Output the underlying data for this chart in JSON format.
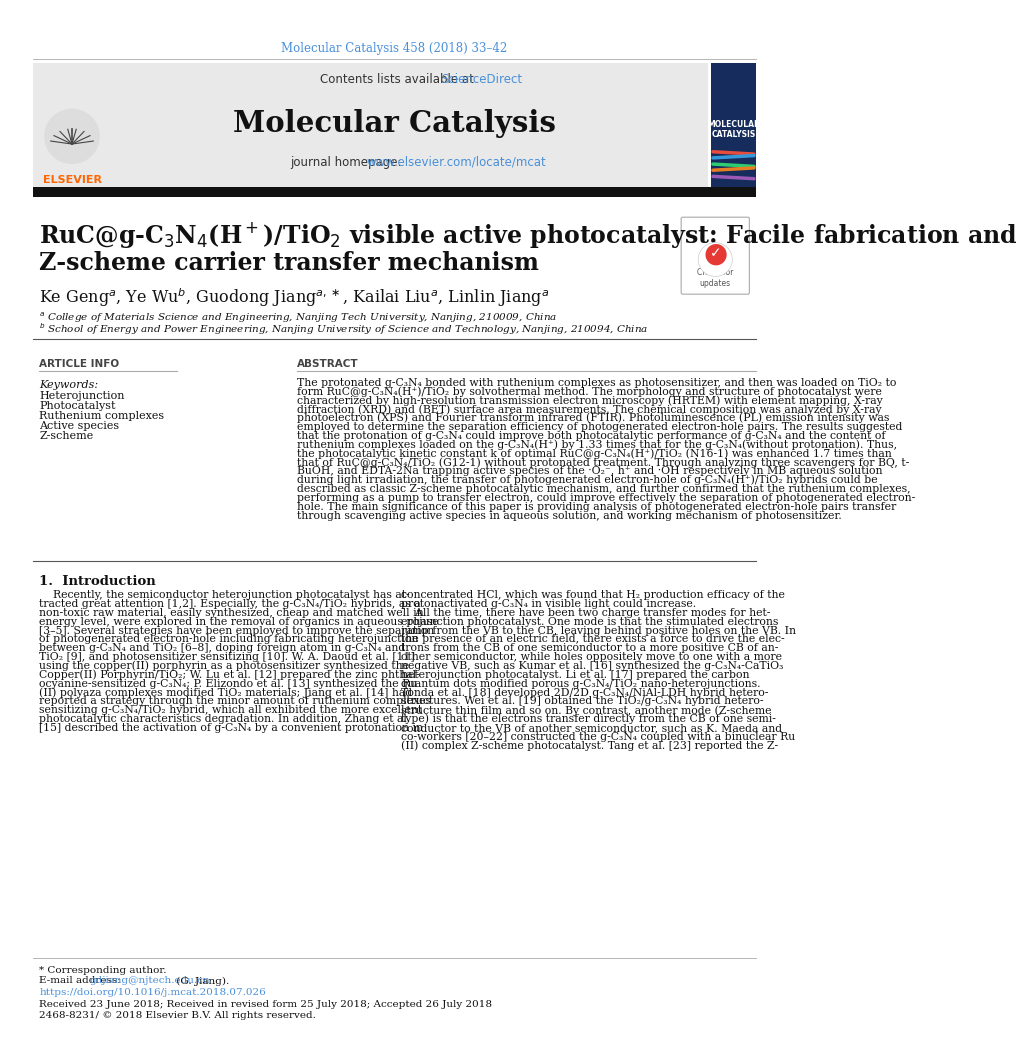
{
  "journal_ref": "Molecular Catalysis 458 (2018) 33–42",
  "contents_text": "Contents lists available at ",
  "sciencedirect_text": "ScienceDirect",
  "journal_name": "Molecular Catalysis",
  "homepage_label": "journal homepage:  ",
  "homepage_url": "www.elsevier.com/locate/mcat",
  "article_info_title": "ARTICLE INFO",
  "keywords_label": "Keywords:",
  "keywords": [
    "Heterojunction",
    "Photocatalyst",
    "Ruthenium complexes",
    "Active species",
    "Z-scheme"
  ],
  "abstract_title": "ABSTRACT",
  "abstract_lines": [
    "The protonated g-C₃N₄ bonded with ruthenium complexes as photosensitizer, and then was loaded on TiO₂ to",
    "form RuC@g-C₃N₄(H⁺)/TiO₂ by solvothermal method. The morphology and structure of photocatalyst were",
    "characterized by high-resolution transmission electron microscopy (HRTEM) with element mapping, X-ray",
    "diffraction (XRD) and (BET) surface area measurements. The chemical composition was analyzed by X-ray",
    "photoelectron (XPS) and Fourier transform infrared (FTIR). Photoluminescence (PL) emission intensity was",
    "employed to determine the separation efficiency of photogenerated electron-hole pairs. The results suggested",
    "that the protonation of g-C₃N₄ could improve both photocatalytic performance of g-C₃N₄ and the content of",
    "ruthenium complexes loaded on the g-C₃N₄(H⁺) by 1.33 times that for the g-C₃N₄(without protonation). Thus,",
    "the photocatalytic kinetic constant k of optimal RuC@g-C₃N₄(H⁺)/TiO₂ (N16-1) was enhanced 1.7 times than",
    "that of RuC@g-C₃N₄/TiO₂ (G12-1) without protonated treatment. Through analyzing three scavengers for BQ, t-",
    "BuOH, and EDTA-2Na trapping active species of the ·O₂⁻, h⁺ and ·OH respectively in MB aqueous solution",
    "during light irradiation, the transfer of photogenerated electron-hole of g-C₃N₄(H⁺)/TiO₂ hybrids could be",
    "described as classic Z-scheme photocatalytic mechanism, and further confirmed that the ruthenium complexes,",
    "performing as a pump to transfer electron, could improve effectively the separation of photogenerated electron-",
    "hole. The main significance of this paper is providing analysis of photogenerated electron-hole pairs transfer",
    "through scavenging active species in aqueous solution, and working mechanism of photosensitizer."
  ],
  "section1_title": "1.  Introduction",
  "intro1_lines": [
    "    Recently, the semiconductor heterojunction photocatalyst has at-",
    "tracted great attention [1,2]. Especially, the g-C₃N₄/TiO₂ hybrids, as a",
    "non-toxic raw material, easily synthesized, cheap and matched well in",
    "energy level, were explored in the removal of organics in aqueous phase",
    "[3–5]. Several strategies have been employed to improve the separation",
    "of photogenerated electron-hole including fabricating heterojunction",
    "between g-C₃N₄ and TiO₂ [6–8], doping foreign atom in g-C₃N₄ and",
    "TiO₂ [9], and photosensitizer sensitizing [10]. W. A. Daoud et al. [11]",
    "using the copper(II) porphyrin as a photosensitizer synthesized the",
    "Copper(II) Porphyrin/TiO₂; W. Lu et al. [12] prepared the zinc phthal-",
    "ocyanine-sensitized g-C₃N₄; P. Elizondo et al. [13] synthesized the Ru",
    "(II) polyaza complexes modified TiO₂ materials; Jiang et al. [14] had",
    "reported a strategy through the minor amount of ruthenium complexes",
    "sensitizing g-C₃N₄/TiO₂ hybrid, which all exhibited the more excellent",
    "photocatalytic characteristics degradation. In addition, Zhang et al.",
    "[15] described the activation of g-C₃N₄ by a convenient protonation in"
  ],
  "intro2_lines": [
    "concentrated HCl, which was found that H₂ production efficacy of the",
    "protonactivated g-C₃N₄ in visible light could increase.",
    "    All the time, there have been two charge transfer modes for het-",
    "erojunction photocatalyst. One mode is that the stimulated electrons",
    "jump from the VB to the CB, leaving behind positive holes on the VB. In",
    "the presence of an electric field, there exists a force to drive the elec-",
    "trons from the CB of one semiconductor to a more positive CB of an-",
    "other semiconductor, while holes oppositely move to one with a more",
    "negative VB, such as Kumar et al. [16] synthesized the g-C₃N₄-CaTiO₃",
    "heterojunction photocatalyst. Li et al. [17] prepared the carbon",
    "quantum dots modified porous g-C₃N₄/TiO₂ nano-heterojunctions.",
    "Tonda et al. [18] developed 2D/2D g-C₃N₄/NiAl-LDH hybrid hetero-",
    "structures. Wei et al. [19] obtained the TiO₂/g-C₃N₄ hybrid hetero-",
    "structure thin film and so on. By contrast, another mode (Z-scheme",
    "type) is that the electrons transfer directly from the CB of one semi-",
    "conductor to the VB of another semiconductor, such as K. Maeda and",
    "co-workers [20–22] constructed the g-C₃N₄ coupled with a binuclear Ru",
    "(II) complex Z-scheme photocatalyst. Tang et al. [23] reported the Z-"
  ],
  "footer_corresponding": "* Corresponding author.",
  "footer_email_label": "E-mail address: ",
  "footer_email": "gdjiang@njtech.edu.cn",
  "footer_email_suffix": " (G. Jiang).",
  "footer_doi": "https://doi.org/10.1016/j.mcat.2018.07.026",
  "footer_received": "Received 23 June 2018; Received in revised form 25 July 2018; Accepted 26 July 2018",
  "footer_issn": "2468-8231/ © 2018 Elsevier B.V. All rights reserved.",
  "link_color": "#4a90d9",
  "elsevier_orange": "#FF6600"
}
